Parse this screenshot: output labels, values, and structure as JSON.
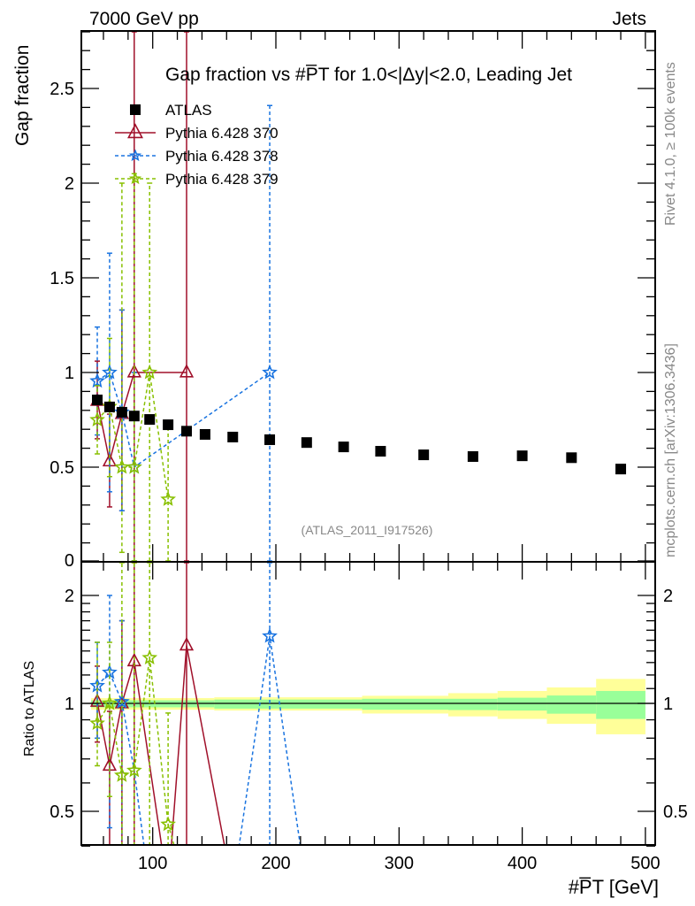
{
  "header": {
    "left": "7000 GeV pp",
    "right": "Jets"
  },
  "side_labels": {
    "rivet": "Rivet 4.1.0, ≥ 100k events",
    "mcplots": "mcplots.cern.ch [arXiv:1306.3436]"
  },
  "analysis_id": "(ATLAS_2011_I917526)",
  "chart_data": [
    {
      "type": "scatter",
      "title": "Gap fraction vs #P̅T for 1.0<|Δy|<2.0, Leading Jet",
      "title_parts": {
        "pre": "Gap fraction vs #",
        "p": "P",
        "t": "T",
        "post": " for 1.0<|Δy|<2.0, Leading Jet"
      },
      "ylabel": "Gap fraction",
      "xlim": [
        42,
        508
      ],
      "ylim": [
        0,
        2.8
      ],
      "yticks": [
        0,
        0.5,
        1,
        1.5,
        2,
        2.5
      ],
      "ytick_labels": [
        "0",
        "0.5",
        "1",
        "1.5",
        "2",
        "2.5"
      ],
      "legend_position": "top-left",
      "series": [
        {
          "name": "ATLAS",
          "color": "#000000",
          "marker": "square",
          "line": "none",
          "x": [
            55,
            65,
            75,
            85,
            97.5,
            112.5,
            127.5,
            142.5,
            165,
            195,
            225,
            255,
            285,
            320,
            360,
            400,
            440,
            480
          ],
          "y": [
            0.855,
            0.818,
            0.79,
            0.77,
            0.752,
            0.724,
            0.69,
            0.673,
            0.659,
            0.645,
            0.63,
            0.607,
            0.584,
            0.565,
            0.556,
            0.56,
            0.55,
            0.49
          ]
        },
        {
          "name": "Pythia 6.428 370",
          "color": "#a0102a",
          "marker": "triangle-open",
          "line": "solid",
          "x": [
            55,
            65,
            75,
            85,
            127.5
          ],
          "y": [
            0.85,
            0.53,
            0.78,
            1.0,
            1.0
          ],
          "err": [
            [
              0.65,
              1.06
            ],
            [
              0.29,
              0.78
            ],
            [
              0.27,
              1.33
            ],
            [
              0,
              3
            ],
            [
              0,
              3
            ]
          ]
        },
        {
          "name": "Pythia 6.428 378",
          "color": "#1a74e0",
          "marker": "star",
          "line": "dashed",
          "x": [
            55,
            65,
            75,
            85,
            195
          ],
          "y": [
            0.955,
            1.0,
            0.79,
            0.5,
            1.0
          ],
          "err": [
            [
              0.67,
              1.24
            ],
            [
              0.37,
              1.63
            ],
            [
              0.27,
              1.33
            ],
            [
              0,
              1.0
            ],
            [
              0,
              2.41
            ]
          ]
        },
        {
          "name": "Pythia 6.428 379",
          "color": "#88c000",
          "marker": "star",
          "line": "dashed",
          "x": [
            55,
            65,
            75,
            85,
            97.5,
            112.5
          ],
          "y": [
            0.75,
            0.82,
            0.5,
            0.5,
            1.0,
            0.33
          ],
          "err": [
            [
              0.57,
              0.93
            ],
            [
              0.45,
              1.18
            ],
            [
              0.05,
              2.0
            ],
            [
              0,
              2.05
            ],
            [
              0,
              2.0
            ],
            [
              0,
              0.72
            ]
          ]
        }
      ]
    },
    {
      "type": "line",
      "ylabel": "Ratio to ATLAS",
      "xlabel": "#P̅T [GeV]",
      "xlabel_parts": {
        "pre": "#",
        "p": "P",
        "t": "T",
        "post": " [GeV]"
      },
      "xlim": [
        42,
        508
      ],
      "ylim": [
        0.4,
        2.48
      ],
      "yscale": "log",
      "xticks": [
        100,
        200,
        300,
        400,
        500
      ],
      "xtick_labels": [
        "100",
        "200",
        "300",
        "400",
        "500"
      ],
      "yticks": [
        0.5,
        1,
        2
      ],
      "ytick_labels": [
        "0.5",
        "1",
        "2"
      ],
      "band": {
        "edges": [
          50,
          90,
          150,
          270,
          340,
          380,
          420,
          460,
          500
        ],
        "total": [
          [
            0.96,
            1.035
          ],
          [
            0.96,
            1.035
          ],
          [
            0.955,
            1.04
          ],
          [
            0.937,
            1.05
          ],
          [
            0.92,
            1.068
          ],
          [
            0.905,
            1.083
          ],
          [
            0.877,
            1.108
          ],
          [
            0.82,
            1.17
          ]
        ],
        "stat": [
          [
            0.975,
            1.02
          ],
          [
            0.975,
            1.02
          ],
          [
            0.967,
            1.025
          ],
          [
            0.96,
            1.03
          ],
          [
            0.958,
            1.03
          ],
          [
            0.955,
            1.037
          ],
          [
            0.936,
            1.052
          ],
          [
            0.905,
            1.083
          ]
        ],
        "total_color": "#ffff99",
        "stat_color": "#99ff99"
      },
      "series": [
        {
          "name": "Pythia 6.428 370",
          "color": "#a0102a",
          "marker": "triangle-open",
          "line": "solid",
          "x": [
            55,
            65,
            75,
            85,
            112.5,
            127.5,
            165
          ],
          "y": [
            1.01,
            0.67,
            1.0,
            1.31,
            0,
            1.45,
            0
          ],
          "marked": [
            true,
            true,
            true,
            true,
            false,
            true,
            false
          ],
          "err": [
            [
              0.78,
              1.27
            ],
            [
              0.35,
              0.95
            ],
            [
              0.34,
              1.7
            ],
            [
              0,
              4
            ],
            null,
            [
              0,
              4
            ],
            null
          ]
        },
        {
          "name": "Pythia 6.428 378",
          "color": "#1a74e0",
          "marker": "star",
          "line": "dashed",
          "x": [
            55,
            65,
            75,
            85,
            97.5,
            165,
            195,
            225
          ],
          "y": [
            1.12,
            1.22,
            1.01,
            0.65,
            0,
            0,
            1.54,
            0
          ],
          "marked": [
            true,
            true,
            true,
            false,
            false,
            false,
            true,
            false
          ],
          "err": [
            [
              0.8,
              1.48
            ],
            [
              0.45,
              2.0
            ],
            [
              0.34,
              1.7
            ],
            null,
            null,
            null,
            [
              0,
              4
            ],
            null
          ]
        },
        {
          "name": "Pythia 6.428 379",
          "color": "#88c000",
          "marker": "star",
          "line": "dashed",
          "x": [
            55,
            65,
            75,
            85,
            97.5,
            112.5,
            127.5
          ],
          "y": [
            0.88,
            1.0,
            0.63,
            0.65,
            1.34,
            0.46,
            0
          ],
          "marked": [
            true,
            true,
            true,
            true,
            true,
            true,
            false
          ],
          "err": [
            [
              0.67,
              1.48
            ],
            [
              0.55,
              1.48
            ],
            [
              0.05,
              2.6
            ],
            [
              0,
              2.6
            ],
            [
              0,
              4
            ],
            [
              0,
              0.94
            ],
            null
          ]
        }
      ]
    }
  ]
}
